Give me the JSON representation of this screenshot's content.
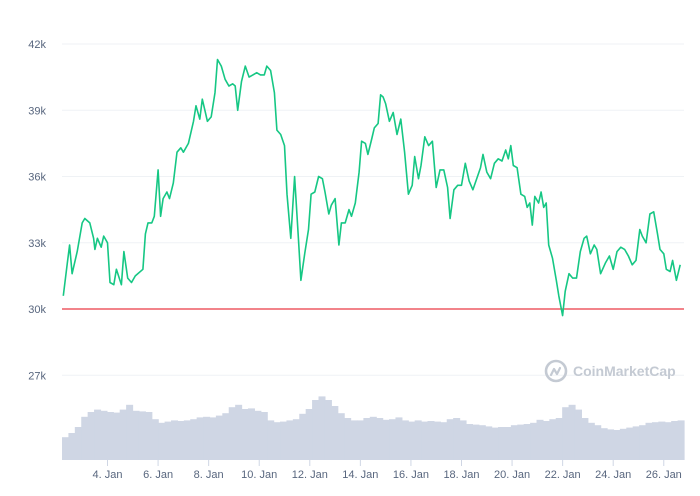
{
  "chart_data": {
    "type": "line",
    "title": "",
    "xlabel": "",
    "ylabel": "",
    "ylim": [
      25000,
      43000
    ],
    "y_ticks": [
      {
        "value": 42000,
        "label": "42k"
      },
      {
        "value": 39000,
        "label": "39k"
      },
      {
        "value": 36000,
        "label": "36k"
      },
      {
        "value": 33000,
        "label": "33k"
      },
      {
        "value": 30000,
        "label": "30k"
      },
      {
        "value": 27000,
        "label": "27k"
      }
    ],
    "x_ticks": [
      {
        "day": 4,
        "label": "4. Jan"
      },
      {
        "day": 6,
        "label": "6. Jan"
      },
      {
        "day": 8,
        "label": "8. Jan"
      },
      {
        "day": 10,
        "label": "10. Jan"
      },
      {
        "day": 12,
        "label": "12. Jan"
      },
      {
        "day": 14,
        "label": "14. Jan"
      },
      {
        "day": 16,
        "label": "16. Jan"
      },
      {
        "day": 18,
        "label": "18. Jan"
      },
      {
        "day": 20,
        "label": "20. Jan"
      },
      {
        "day": 22,
        "label": "22. Jan"
      },
      {
        "day": 24,
        "label": "24. Jan"
      },
      {
        "day": 26,
        "label": "26. Jan"
      }
    ],
    "xlim_days": [
      2.2,
      26.8
    ],
    "reference_line": {
      "value": 30000,
      "color": "#ea3943"
    },
    "grid": true,
    "series": [
      {
        "name": "",
        "color": "#16c784",
        "points": [
          [
            2.25,
            30600
          ],
          [
            2.4,
            32000
          ],
          [
            2.5,
            32900
          ],
          [
            2.6,
            31600
          ],
          [
            2.8,
            32600
          ],
          [
            3.0,
            33900
          ],
          [
            3.1,
            34100
          ],
          [
            3.3,
            33900
          ],
          [
            3.45,
            33200
          ],
          [
            3.5,
            32700
          ],
          [
            3.6,
            33200
          ],
          [
            3.75,
            32800
          ],
          [
            3.85,
            33300
          ],
          [
            4.0,
            33000
          ],
          [
            4.1,
            31200
          ],
          [
            4.25,
            31100
          ],
          [
            4.35,
            31800
          ],
          [
            4.55,
            31100
          ],
          [
            4.65,
            32600
          ],
          [
            4.8,
            31400
          ],
          [
            4.95,
            31200
          ],
          [
            5.1,
            31500
          ],
          [
            5.4,
            31800
          ],
          [
            5.5,
            33400
          ],
          [
            5.6,
            33900
          ],
          [
            5.75,
            33900
          ],
          [
            5.85,
            34200
          ],
          [
            6.0,
            36300
          ],
          [
            6.1,
            34200
          ],
          [
            6.2,
            35000
          ],
          [
            6.35,
            35300
          ],
          [
            6.45,
            35000
          ],
          [
            6.6,
            35700
          ],
          [
            6.75,
            37100
          ],
          [
            6.9,
            37300
          ],
          [
            7.0,
            37100
          ],
          [
            7.2,
            37500
          ],
          [
            7.4,
            38500
          ],
          [
            7.5,
            39200
          ],
          [
            7.65,
            38600
          ],
          [
            7.75,
            39500
          ],
          [
            7.85,
            39000
          ],
          [
            7.95,
            38500
          ],
          [
            8.1,
            38700
          ],
          [
            8.25,
            39800
          ],
          [
            8.35,
            41300
          ],
          [
            8.5,
            41000
          ],
          [
            8.65,
            40400
          ],
          [
            8.8,
            40100
          ],
          [
            8.95,
            40200
          ],
          [
            9.05,
            40100
          ],
          [
            9.15,
            39000
          ],
          [
            9.3,
            40300
          ],
          [
            9.45,
            41000
          ],
          [
            9.6,
            40500
          ],
          [
            9.75,
            40600
          ],
          [
            9.9,
            40700
          ],
          [
            10.05,
            40600
          ],
          [
            10.2,
            40600
          ],
          [
            10.3,
            41000
          ],
          [
            10.45,
            40800
          ],
          [
            10.6,
            39800
          ],
          [
            10.7,
            38100
          ],
          [
            10.85,
            37900
          ],
          [
            11.0,
            37400
          ],
          [
            11.1,
            35200
          ],
          [
            11.25,
            33200
          ],
          [
            11.4,
            36000
          ],
          [
            11.55,
            33200
          ],
          [
            11.65,
            31300
          ],
          [
            11.8,
            32500
          ],
          [
            11.95,
            33600
          ],
          [
            12.05,
            35200
          ],
          [
            12.2,
            35300
          ],
          [
            12.35,
            36000
          ],
          [
            12.5,
            35900
          ],
          [
            12.6,
            35300
          ],
          [
            12.75,
            34300
          ],
          [
            12.85,
            34700
          ],
          [
            13.0,
            35000
          ],
          [
            13.15,
            32900
          ],
          [
            13.25,
            33900
          ],
          [
            13.4,
            33900
          ],
          [
            13.55,
            34500
          ],
          [
            13.65,
            34200
          ],
          [
            13.8,
            34800
          ],
          [
            13.95,
            36200
          ],
          [
            14.05,
            37600
          ],
          [
            14.2,
            37500
          ],
          [
            14.3,
            37000
          ],
          [
            14.45,
            37700
          ],
          [
            14.55,
            38200
          ],
          [
            14.7,
            38400
          ],
          [
            14.8,
            39700
          ],
          [
            14.9,
            39600
          ],
          [
            15.0,
            39300
          ],
          [
            15.15,
            38500
          ],
          [
            15.3,
            38900
          ],
          [
            15.45,
            37900
          ],
          [
            15.6,
            38600
          ],
          [
            15.75,
            37100
          ],
          [
            15.9,
            35200
          ],
          [
            16.05,
            35600
          ],
          [
            16.15,
            36900
          ],
          [
            16.3,
            35900
          ],
          [
            16.4,
            36500
          ],
          [
            16.55,
            37800
          ],
          [
            16.7,
            37400
          ],
          [
            16.85,
            37600
          ],
          [
            17.0,
            35500
          ],
          [
            17.15,
            36300
          ],
          [
            17.3,
            36300
          ],
          [
            17.45,
            35500
          ],
          [
            17.55,
            34100
          ],
          [
            17.7,
            35400
          ],
          [
            17.85,
            35600
          ],
          [
            18.0,
            35600
          ],
          [
            18.15,
            36600
          ],
          [
            18.3,
            35800
          ],
          [
            18.45,
            35400
          ],
          [
            18.6,
            35900
          ],
          [
            18.75,
            36400
          ],
          [
            18.85,
            37000
          ],
          [
            19.0,
            36200
          ],
          [
            19.15,
            35900
          ],
          [
            19.3,
            36600
          ],
          [
            19.45,
            36800
          ],
          [
            19.6,
            36700
          ],
          [
            19.75,
            37200
          ],
          [
            19.85,
            36800
          ],
          [
            19.95,
            37400
          ],
          [
            20.05,
            36500
          ],
          [
            20.2,
            36400
          ],
          [
            20.35,
            35200
          ],
          [
            20.5,
            35100
          ],
          [
            20.6,
            34600
          ],
          [
            20.7,
            34800
          ],
          [
            20.8,
            33800
          ],
          [
            20.9,
            35100
          ],
          [
            21.05,
            34800
          ],
          [
            21.15,
            35300
          ],
          [
            21.25,
            34600
          ],
          [
            21.35,
            34800
          ],
          [
            21.45,
            32900
          ],
          [
            21.6,
            32300
          ],
          [
            21.75,
            31300
          ],
          [
            21.85,
            30600
          ],
          [
            22.0,
            29700
          ],
          [
            22.1,
            30800
          ],
          [
            22.25,
            31600
          ],
          [
            22.4,
            31400
          ],
          [
            22.55,
            31400
          ],
          [
            22.7,
            32600
          ],
          [
            22.85,
            33200
          ],
          [
            22.95,
            33300
          ],
          [
            23.1,
            32500
          ],
          [
            23.25,
            32900
          ],
          [
            23.35,
            32700
          ],
          [
            23.5,
            31600
          ],
          [
            23.7,
            32100
          ],
          [
            23.85,
            32400
          ],
          [
            24.0,
            31800
          ],
          [
            24.15,
            32600
          ],
          [
            24.3,
            32800
          ],
          [
            24.45,
            32700
          ],
          [
            24.6,
            32400
          ],
          [
            24.75,
            32000
          ],
          [
            24.9,
            32200
          ],
          [
            25.05,
            33600
          ],
          [
            25.15,
            33300
          ],
          [
            25.3,
            33000
          ],
          [
            25.45,
            34300
          ],
          [
            25.6,
            34400
          ],
          [
            25.75,
            33400
          ],
          [
            25.85,
            32700
          ],
          [
            26.0,
            32500
          ],
          [
            26.1,
            31800
          ],
          [
            26.25,
            31700
          ],
          [
            26.35,
            32200
          ],
          [
            26.5,
            31300
          ],
          [
            26.65,
            32000
          ]
        ]
      }
    ],
    "volume": {
      "color": "#cfd6e4",
      "values": [
        0.38,
        0.45,
        0.55,
        0.72,
        0.8,
        0.84,
        0.82,
        0.8,
        0.79,
        0.84,
        0.92,
        0.82,
        0.81,
        0.8,
        0.68,
        0.62,
        0.64,
        0.66,
        0.65,
        0.66,
        0.68,
        0.71,
        0.72,
        0.71,
        0.74,
        0.78,
        0.88,
        0.92,
        0.85,
        0.86,
        0.82,
        0.8,
        0.66,
        0.63,
        0.64,
        0.66,
        0.68,
        0.77,
        0.85,
        1.0,
        1.06,
        1.0,
        0.9,
        0.78,
        0.7,
        0.66,
        0.66,
        0.7,
        0.72,
        0.7,
        0.67,
        0.68,
        0.71,
        0.66,
        0.64,
        0.66,
        0.64,
        0.65,
        0.64,
        0.63,
        0.68,
        0.7,
        0.66,
        0.6,
        0.59,
        0.58,
        0.56,
        0.54,
        0.55,
        0.55,
        0.58,
        0.59,
        0.6,
        0.62,
        0.67,
        0.65,
        0.68,
        0.7,
        0.88,
        0.92,
        0.84,
        0.7,
        0.62,
        0.58,
        0.53,
        0.51,
        0.5,
        0.52,
        0.54,
        0.56,
        0.58,
        0.62,
        0.63,
        0.64,
        0.63,
        0.65,
        0.66
      ]
    }
  },
  "watermark": {
    "text": "CoinMarketCap",
    "icon": "coinmarketcap-logo-icon",
    "color": "#c4cad3"
  }
}
